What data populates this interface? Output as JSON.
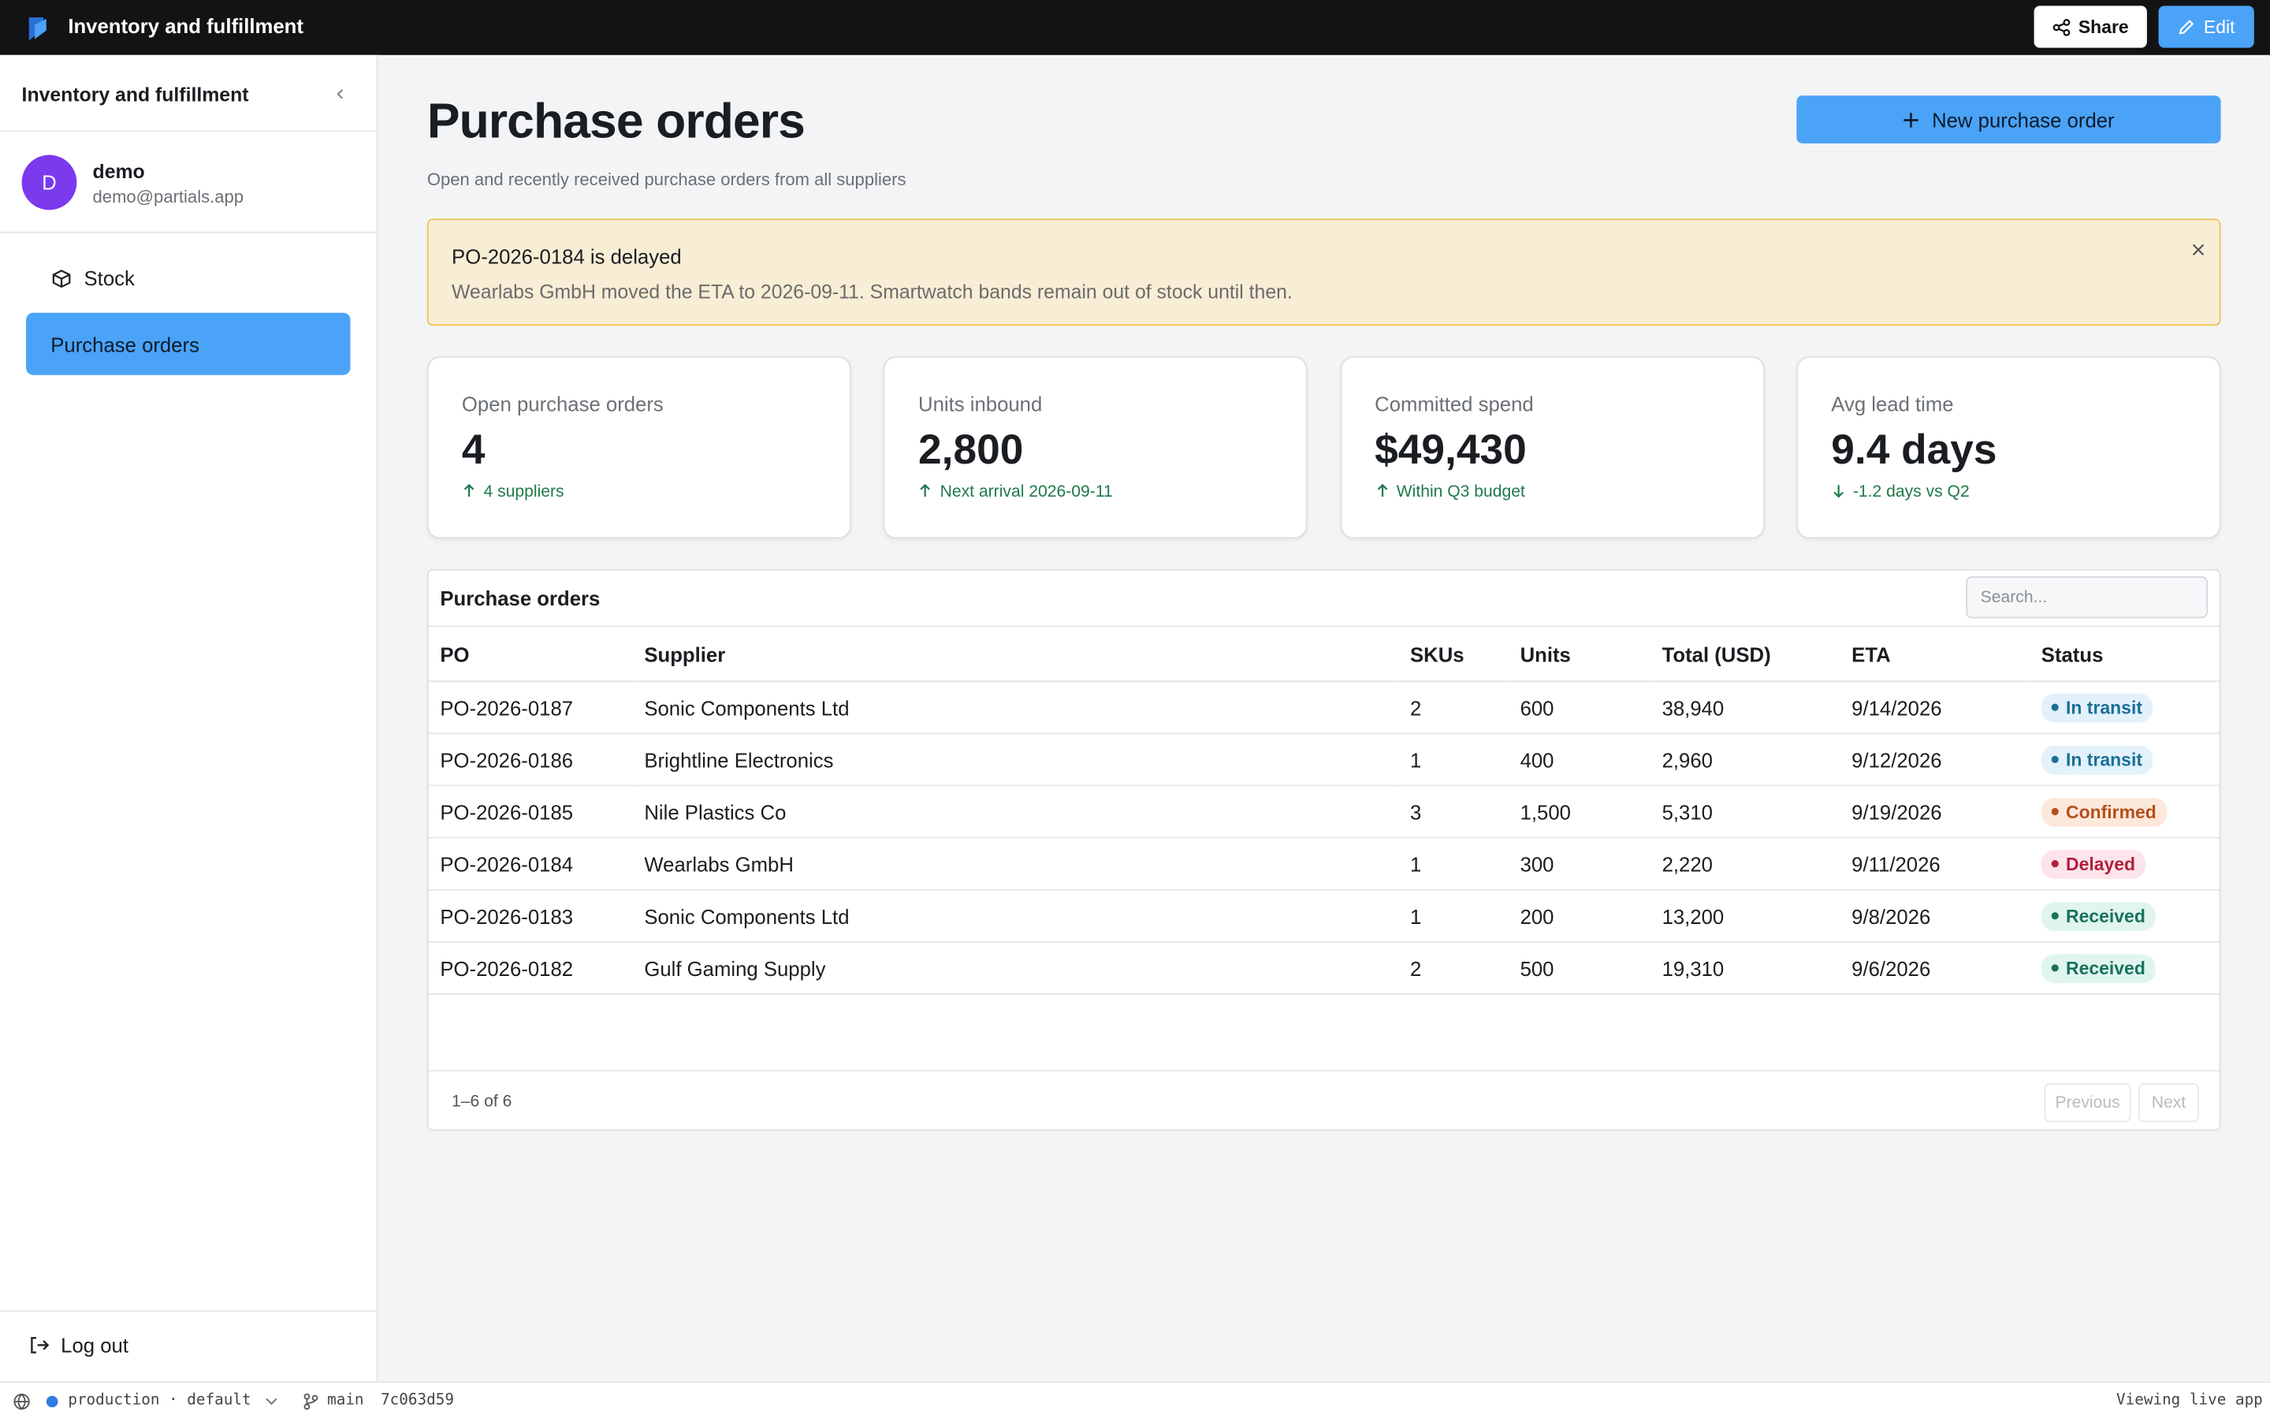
{
  "topbar": {
    "app_title": "Inventory and fulfillment",
    "share": "Share",
    "edit": "Edit"
  },
  "sidebar": {
    "title": "Inventory and fulfillment",
    "user": {
      "initial": "D",
      "name": "demo",
      "email": "demo@partials.app"
    },
    "nav": [
      "Stock",
      "Purchase orders"
    ],
    "logout": "Log out"
  },
  "header": {
    "title": "Purchase orders",
    "subtitle": "Open and recently received purchase orders from all suppliers",
    "new_button": "New purchase order"
  },
  "alert": {
    "title": "PO-2026-0184 is delayed",
    "message": "Wearlabs GmbH moved the ETA to 2026-09-11. Smartwatch bands remain out of stock until then."
  },
  "stats": [
    {
      "label": "Open purchase orders",
      "value": "4",
      "note": "4 suppliers"
    },
    {
      "label": "Units inbound",
      "value": "2,800",
      "note": "Next arrival 2026-09-11"
    },
    {
      "label": "Committed spend",
      "value": "$49,430",
      "note": "Within Q3 budget"
    },
    {
      "label": "Avg lead time",
      "value": "9.4 days",
      "note": "-1.2 days vs Q2"
    }
  ],
  "table": {
    "title": "Purchase orders",
    "search_placeholder": "Search...",
    "columns": [
      "PO",
      "Supplier",
      "SKUs",
      "Units",
      "Total (USD)",
      "ETA",
      "Status"
    ],
    "rows": [
      [
        "PO-2026-0187",
        "Sonic Components Ltd",
        "2",
        "600",
        "38,940",
        "9/14/2026",
        "In transit"
      ],
      [
        "PO-2026-0186",
        "Brightline Electronics",
        "1",
        "400",
        "2,960",
        "9/12/2026",
        "In transit"
      ],
      [
        "PO-2026-0185",
        "Nile Plastics Co",
        "3",
        "1,500",
        "5,310",
        "9/19/2026",
        "Confirmed"
      ],
      [
        "PO-2026-0184",
        "Wearlabs GmbH",
        "1",
        "300",
        "2,220",
        "9/11/2026",
        "Delayed"
      ],
      [
        "PO-2026-0183",
        "Sonic Components Ltd",
        "1",
        "200",
        "13,200",
        "9/8/2026",
        "Received"
      ],
      [
        "PO-2026-0182",
        "Gulf Gaming Supply",
        "2",
        "500",
        "19,310",
        "9/6/2026",
        "Received"
      ]
    ],
    "pagination": {
      "summary": "1–6 of 6",
      "previous": "Previous",
      "next": "Next"
    }
  },
  "footer": {
    "environment": "production · default",
    "branch": "main",
    "commit": "7c063d59",
    "status": "Viewing live app"
  }
}
